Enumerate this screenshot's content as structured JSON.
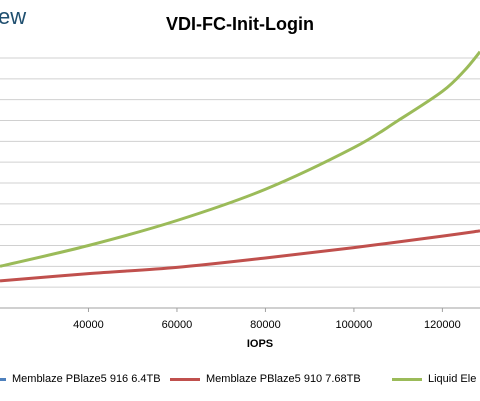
{
  "brand": {
    "logo_text": "ew"
  },
  "chart_data": {
    "type": "line",
    "title": "VDI-FC-Init-Login",
    "xlabel": "IOPS",
    "ylabel": "",
    "x_ticks": [
      40000,
      60000,
      80000,
      100000,
      120000
    ],
    "x_tick_labels": [
      "40000",
      "60000",
      "80000",
      "100000",
      "120000"
    ],
    "xlim": [
      20000,
      128500
    ],
    "ylim": [
      0,
      12
    ],
    "y_gridlines": [
      1,
      2,
      3,
      4,
      5,
      6,
      7,
      8,
      9,
      10,
      11,
      12
    ],
    "grid": true,
    "legend_placement": "bottom",
    "series": [
      {
        "name": "Memblaze PBlaze5 916 6.4TB",
        "color": "#4f81bd",
        "x": [],
        "y": []
      },
      {
        "name": "Memblaze PBlaze5 910 7.68TB",
        "color": "#c0504d",
        "x": [
          20000,
          40000,
          60000,
          80000,
          100000,
          120000,
          128500
        ],
        "y": [
          1.3,
          1.65,
          1.95,
          2.4,
          2.9,
          3.45,
          3.7
        ]
      },
      {
        "name": "Liquid Ele",
        "color": "#9bbb59",
        "x": [
          20000,
          40000,
          60000,
          80000,
          100000,
          110000,
          120000,
          125000,
          128500
        ],
        "y": [
          2.0,
          3.0,
          4.2,
          5.7,
          7.7,
          9.0,
          10.4,
          11.4,
          12.3
        ]
      }
    ]
  }
}
